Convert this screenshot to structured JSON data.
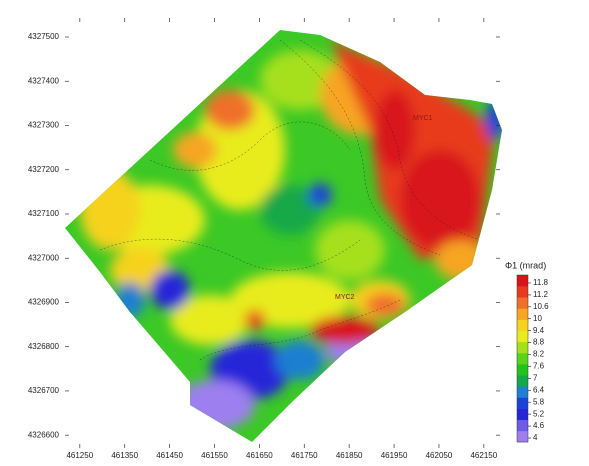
{
  "chart_data": {
    "type": "contour",
    "xlim": [
      461217,
      462186
    ],
    "xticks": [
      461250,
      461350,
      461450,
      461550,
      461650,
      461750,
      461850,
      461950,
      462050,
      462150
    ],
    "ylim": [
      4326571,
      4327543
    ],
    "yticks": [
      4326600,
      4326700,
      4326800,
      4326900,
      4327000,
      4327100,
      4327200,
      4327300,
      4327400,
      4327500
    ],
    "annotations": [
      "MYC1",
      "MYC2"
    ],
    "colorbar": {
      "title": "Φ1 (mrad)",
      "clim": [
        3.8,
        12.2
      ],
      "ticks": [
        11.8,
        11.2,
        10.6,
        10,
        9.4,
        8.8,
        8.2,
        7.6,
        7,
        6.4,
        5.8,
        5.2,
        4.6,
        4
      ],
      "colors": [
        "#9d7ff0",
        "#6d5ae6",
        "#2626d8",
        "#1a44d6",
        "#1f7fd0",
        "#14a84a",
        "#22c41c",
        "#5ad41a",
        "#a6e01a",
        "#e8ec1e",
        "#f6d21c",
        "#f7a524",
        "#f0702a",
        "#e83a1e",
        "#d8141a"
      ]
    }
  }
}
